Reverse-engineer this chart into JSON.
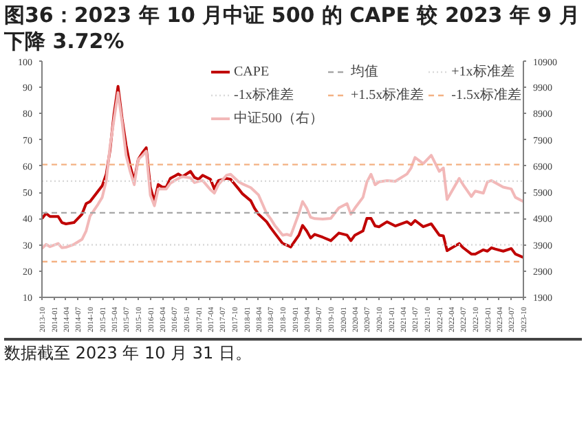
{
  "chart_data": {
    "type": "line",
    "title": "图36：2023 年 10 月中证 500 的 CAPE 较 2023 年 9 月下降 3.72%",
    "annotations": [
      "数据截至 2023 年 10 月 31 日。"
    ],
    "x": [
      "2013-10",
      "2013-11",
      "2013-12",
      "2014-02",
      "2014-03",
      "2014-04",
      "2014-06",
      "2014-08",
      "2014-09",
      "2014-10",
      "2014-12",
      "2015-01",
      "2015-02",
      "2015-03",
      "2015-04",
      "2015-05",
      "2015-06",
      "2015-07",
      "2015-08",
      "2015-09",
      "2015-10",
      "2015-11",
      "2015-12",
      "2016-01",
      "2016-02",
      "2016-03",
      "2016-04",
      "2016-05",
      "2016-06",
      "2016-08",
      "2016-09",
      "2016-11",
      "2016-12",
      "2017-01",
      "2017-02",
      "2017-04",
      "2017-05",
      "2017-06",
      "2017-08",
      "2017-09",
      "2017-11",
      "2017-12",
      "2018-02",
      "2018-03",
      "2018-04",
      "2018-06",
      "2018-07",
      "2018-08",
      "2018-10",
      "2018-11",
      "2018-12",
      "2019-02",
      "2019-03",
      "2019-04",
      "2019-05",
      "2019-06",
      "2019-08",
      "2019-10",
      "2019-12",
      "2020-02",
      "2020-03",
      "2020-04",
      "2020-06",
      "2020-07",
      "2020-08",
      "2020-09",
      "2020-10",
      "2020-12",
      "2021-02",
      "2021-05",
      "2021-06",
      "2021-07",
      "2021-09",
      "2021-11",
      "2022-01",
      "2022-02",
      "2022-03",
      "2022-06",
      "2022-07",
      "2022-09",
      "2022-10",
      "2022-12",
      "2023-01",
      "2023-02",
      "2023-03",
      "2023-05",
      "2023-07",
      "2023-08",
      "2023-10"
    ],
    "series": [
      {
        "name": "CAPE",
        "color": "#c00000",
        "values": [
          40,
          42,
          40.8,
          40.8,
          38.5,
          38,
          38.5,
          41.7,
          45.7,
          46.5,
          50.5,
          52.5,
          57,
          66,
          80,
          90.4,
          78,
          68,
          60,
          54.5,
          62.5,
          65,
          67,
          52,
          46.5,
          53,
          52,
          52,
          55.3,
          57,
          56,
          58,
          55.7,
          55,
          56.5,
          55,
          51.3,
          54.5,
          55.3,
          55,
          51.3,
          49.4,
          46.8,
          44,
          41.7,
          38.8,
          36.6,
          34.5,
          30.5,
          29.9,
          29.2,
          33.7,
          37.4,
          35.3,
          32.6,
          34,
          32.9,
          31.6,
          34.5,
          33.7,
          31.6,
          33.7,
          35.3,
          40.1,
          40.1,
          37.2,
          36.9,
          38.8,
          37.2,
          38.8,
          37.7,
          39.3,
          36.9,
          38,
          33.7,
          33.4,
          27.8,
          30.5,
          28.9,
          26.5,
          26.5,
          28.1,
          27.6,
          28.9,
          28.4,
          27.6,
          28.6,
          26.5,
          25.2
        ]
      },
      {
        "name": "中证500（右）",
        "color": "#f2b8b8",
        "axis": "y2",
        "values": [
          3760,
          3920,
          3830,
          3950,
          3790,
          3810,
          3920,
          4110,
          4430,
          5000,
          5450,
          5710,
          6350,
          7630,
          8700,
          9700,
          8580,
          7310,
          6700,
          6190,
          7150,
          7300,
          7470,
          5800,
          5390,
          6030,
          6030,
          6030,
          6250,
          6430,
          6500,
          6450,
          6270,
          6320,
          6350,
          6000,
          5870,
          6200,
          6550,
          6590,
          6300,
          6220,
          6080,
          5950,
          5800,
          5100,
          4900,
          4650,
          4270,
          4300,
          4250,
          5100,
          5550,
          5300,
          4950,
          4900,
          4880,
          4910,
          5310,
          5470,
          5070,
          5300,
          5710,
          6300,
          6590,
          6190,
          6300,
          6350,
          6320,
          6600,
          6830,
          7230,
          6990,
          7310,
          6700,
          6830,
          5630,
          6430,
          6190,
          5740,
          5950,
          5870,
          6300,
          6350,
          6270,
          6100,
          6030,
          5710,
          5550
        ]
      }
    ],
    "ref_lines": [
      {
        "axis": "y",
        "value": 42.2,
        "label": "均值",
        "color": "#a6a6a6",
        "line_style": "dashed"
      },
      {
        "axis": "y",
        "value": 54.3,
        "label": "+1x标准差",
        "color": "#d9d9d9",
        "line_style": "dotted"
      },
      {
        "axis": "y",
        "value": 30.0,
        "label": "-1x标准差",
        "color": "#d9d9d9",
        "line_style": "dotted"
      },
      {
        "axis": "y",
        "value": 60.6,
        "label": "+1.5x标准差",
        "color": "#f4b183",
        "line_style": "dashed"
      },
      {
        "axis": "y",
        "value": 23.6,
        "label": "-1.5x标准差",
        "color": "#f4b183",
        "line_style": "dashed"
      }
    ],
    "xlim": [
      "2013-10",
      "2023-10"
    ],
    "xticks": [
      "2013-10",
      "2014-01",
      "2014-04",
      "2014-07",
      "2014-10",
      "2015-01",
      "2015-04",
      "2015-07",
      "2015-10",
      "2016-01",
      "2016-04",
      "2016-07",
      "2016-10",
      "2017-01",
      "2017-04",
      "2017-07",
      "2017-10",
      "2018-01",
      "2018-04",
      "2018-07",
      "2018-10",
      "2019-01",
      "2019-04",
      "2019-07",
      "2019-10",
      "2020-01",
      "2020-04",
      "2020-07",
      "2020-10",
      "2021-01",
      "2021-04",
      "2021-07",
      "2021-10",
      "2022-01",
      "2022-04",
      "2022-07",
      "2022-10",
      "2023-01",
      "2023-04",
      "2023-07",
      "2023-10"
    ],
    "ylim": [
      10,
      100
    ],
    "yticks": [
      10,
      20,
      30,
      40,
      50,
      60,
      70,
      80,
      90,
      100
    ],
    "y2lim": [
      1900,
      10900
    ],
    "y2ticks": [
      1900,
      2900,
      3900,
      4900,
      5900,
      6900,
      7900,
      8900,
      9900,
      10900
    ],
    "grid": false,
    "legend": "top right",
    "line_style": "solid",
    "marker": "none"
  }
}
